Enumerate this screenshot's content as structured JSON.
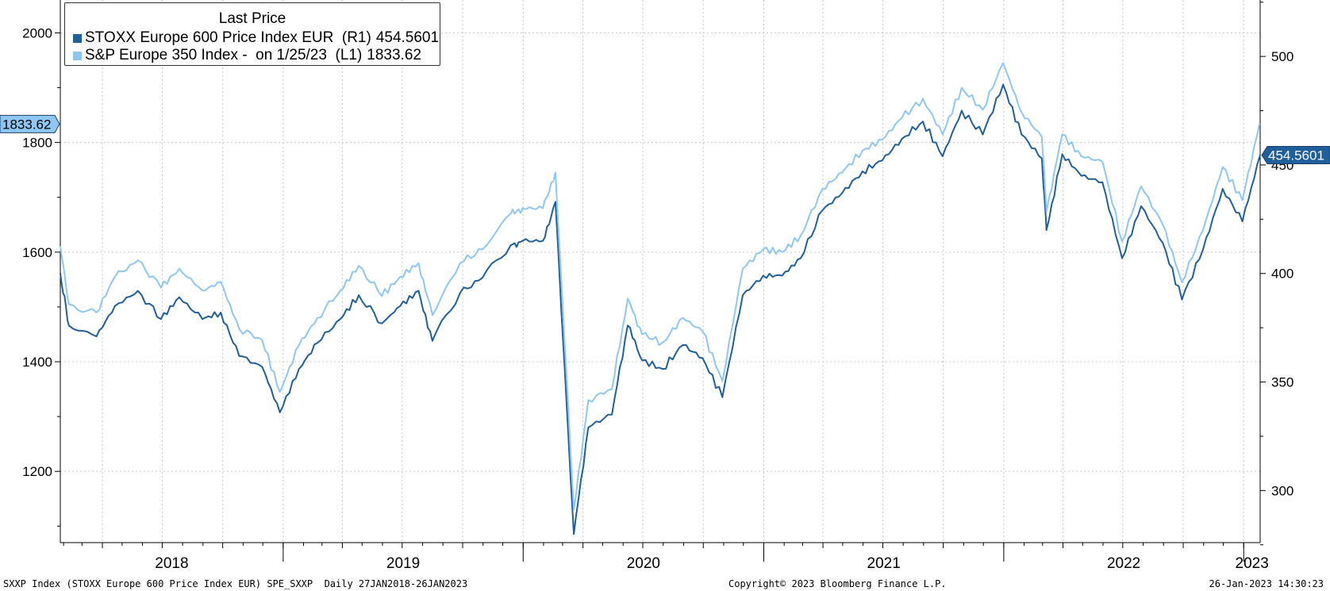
{
  "chart_data": {
    "type": "line",
    "title": "Last Price",
    "x_range": [
      "2018-01-27",
      "2023-01-26"
    ],
    "x_tick_labels": [
      "2018",
      "2019",
      "2020",
      "2021",
      "2022",
      "2023"
    ],
    "y_left": {
      "range": [
        1070,
        2060
      ],
      "ticks": [
        1200,
        1400,
        1600,
        1800,
        2000
      ]
    },
    "y_right": {
      "range": [
        276,
        526
      ],
      "ticks": [
        300,
        350,
        400,
        450,
        500
      ]
    },
    "grid": true,
    "legend_position": "top-left",
    "series": [
      {
        "name": "STOXX Europe 600 Price Index EUR",
        "axis_label": "(R1)",
        "axis": "right",
        "color": "#1f5f9c",
        "last_value_label": "454.5601",
        "points": [
          [
            "2018-01-27",
            400
          ],
          [
            "2018-02-09",
            376
          ],
          [
            "2018-03-23",
            371
          ],
          [
            "2018-04-20",
            385
          ],
          [
            "2018-05-25",
            392
          ],
          [
            "2018-06-29",
            379
          ],
          [
            "2018-07-27",
            389
          ],
          [
            "2018-08-31",
            379
          ],
          [
            "2018-09-28",
            382
          ],
          [
            "2018-10-26",
            362
          ],
          [
            "2018-11-30",
            357
          ],
          [
            "2018-12-27",
            336
          ],
          [
            "2019-01-25",
            356
          ],
          [
            "2019-02-22",
            368
          ],
          [
            "2019-03-29",
            379
          ],
          [
            "2019-04-26",
            390
          ],
          [
            "2019-05-31",
            377
          ],
          [
            "2019-06-28",
            385
          ],
          [
            "2019-07-26",
            392
          ],
          [
            "2019-08-16",
            369
          ],
          [
            "2019-09-27",
            391
          ],
          [
            "2019-10-31",
            398
          ],
          [
            "2019-12-13",
            413
          ],
          [
            "2019-12-31",
            415
          ],
          [
            "2020-01-31",
            415
          ],
          [
            "2020-02-19",
            433
          ],
          [
            "2020-03-18",
            280
          ],
          [
            "2020-04-09",
            329
          ],
          [
            "2020-05-15",
            335
          ],
          [
            "2020-06-08",
            376
          ],
          [
            "2020-06-30",
            360
          ],
          [
            "2020-07-31",
            356
          ],
          [
            "2020-08-31",
            367
          ],
          [
            "2020-09-30",
            361
          ],
          [
            "2020-10-30",
            343
          ],
          [
            "2020-11-30",
            390
          ],
          [
            "2020-12-31",
            399
          ],
          [
            "2021-01-29",
            399
          ],
          [
            "2021-02-26",
            407
          ],
          [
            "2021-03-31",
            429
          ],
          [
            "2021-04-30",
            437
          ],
          [
            "2021-05-31",
            447
          ],
          [
            "2021-06-30",
            452
          ],
          [
            "2021-07-30",
            462
          ],
          [
            "2021-08-31",
            470
          ],
          [
            "2021-09-30",
            454
          ],
          [
            "2021-10-29",
            475
          ],
          [
            "2021-11-30",
            464
          ],
          [
            "2021-12-31",
            487
          ],
          [
            "2022-01-28",
            464
          ],
          [
            "2022-02-28",
            453
          ],
          [
            "2022-03-07",
            420
          ],
          [
            "2022-03-31",
            455
          ],
          [
            "2022-04-29",
            445
          ],
          [
            "2022-05-31",
            442
          ],
          [
            "2022-06-30",
            407
          ],
          [
            "2022-07-29",
            431
          ],
          [
            "2022-08-31",
            414
          ],
          [
            "2022-09-29",
            388
          ],
          [
            "2022-10-31",
            411
          ],
          [
            "2022-11-30",
            439
          ],
          [
            "2022-12-30",
            424
          ],
          [
            "2023-01-26",
            454.5601
          ]
        ]
      },
      {
        "name": "S&P Europe 350 Index -",
        "date_note": "on 1/25/23",
        "axis_label": "(L1)",
        "axis": "left",
        "color": "#8ec6f4",
        "last_value_label": "1833.62",
        "points": [
          [
            "2018-01-27",
            1610
          ],
          [
            "2018-02-09",
            1505
          ],
          [
            "2018-03-23",
            1490
          ],
          [
            "2018-04-20",
            1555
          ],
          [
            "2018-05-25",
            1585
          ],
          [
            "2018-06-29",
            1535
          ],
          [
            "2018-07-27",
            1570
          ],
          [
            "2018-08-31",
            1530
          ],
          [
            "2018-09-28",
            1545
          ],
          [
            "2018-10-26",
            1460
          ],
          [
            "2018-11-30",
            1440
          ],
          [
            "2018-12-27",
            1345
          ],
          [
            "2019-01-25",
            1430
          ],
          [
            "2019-02-22",
            1480
          ],
          [
            "2019-03-29",
            1530
          ],
          [
            "2019-04-26",
            1575
          ],
          [
            "2019-05-31",
            1520
          ],
          [
            "2019-06-28",
            1555
          ],
          [
            "2019-07-26",
            1580
          ],
          [
            "2019-08-16",
            1485
          ],
          [
            "2019-09-27",
            1580
          ],
          [
            "2019-10-31",
            1605
          ],
          [
            "2019-12-13",
            1670
          ],
          [
            "2019-12-31",
            1680
          ],
          [
            "2020-01-31",
            1680
          ],
          [
            "2020-02-19",
            1745
          ],
          [
            "2020-03-18",
            1130
          ],
          [
            "2020-04-09",
            1330
          ],
          [
            "2020-05-15",
            1350
          ],
          [
            "2020-06-08",
            1515
          ],
          [
            "2020-06-30",
            1450
          ],
          [
            "2020-07-31",
            1435
          ],
          [
            "2020-08-31",
            1480
          ],
          [
            "2020-09-30",
            1455
          ],
          [
            "2020-10-30",
            1365
          ],
          [
            "2020-11-30",
            1570
          ],
          [
            "2020-12-31",
            1605
          ],
          [
            "2021-01-29",
            1600
          ],
          [
            "2021-02-26",
            1630
          ],
          [
            "2021-03-31",
            1715
          ],
          [
            "2021-04-30",
            1745
          ],
          [
            "2021-05-31",
            1785
          ],
          [
            "2021-06-30",
            1805
          ],
          [
            "2021-07-30",
            1845
          ],
          [
            "2021-08-31",
            1880
          ],
          [
            "2021-09-30",
            1815
          ],
          [
            "2021-10-29",
            1900
          ],
          [
            "2021-11-30",
            1860
          ],
          [
            "2021-12-31",
            1945
          ],
          [
            "2022-01-28",
            1855
          ],
          [
            "2022-02-28",
            1810
          ],
          [
            "2022-03-07",
            1675
          ],
          [
            "2022-03-31",
            1815
          ],
          [
            "2022-04-29",
            1775
          ],
          [
            "2022-05-31",
            1765
          ],
          [
            "2022-06-30",
            1620
          ],
          [
            "2022-07-29",
            1720
          ],
          [
            "2022-08-31",
            1650
          ],
          [
            "2022-09-29",
            1545
          ],
          [
            "2022-10-31",
            1640
          ],
          [
            "2022-11-30",
            1755
          ],
          [
            "2022-12-30",
            1695
          ],
          [
            "2023-01-25",
            1833.62
          ]
        ]
      }
    ]
  },
  "legend": {
    "title": "Last Price",
    "row1_name": "STOXX Europe 600 Price Index EUR  (R1)",
    "row1_value": "454.5601",
    "row2_name": "S&P Europe 350 Index -  on 1/25/23  (L1)",
    "row2_value": "1833.62"
  },
  "footer": {
    "left": "SXXP Index (STOXX Europe 600 Price Index EUR) SPE_SXXP  Daily 27JAN2018-26JAN2023",
    "center": "Copyright© 2023 Bloomberg Finance L.P.",
    "right": "26-Jan-2023 14:30:23"
  }
}
